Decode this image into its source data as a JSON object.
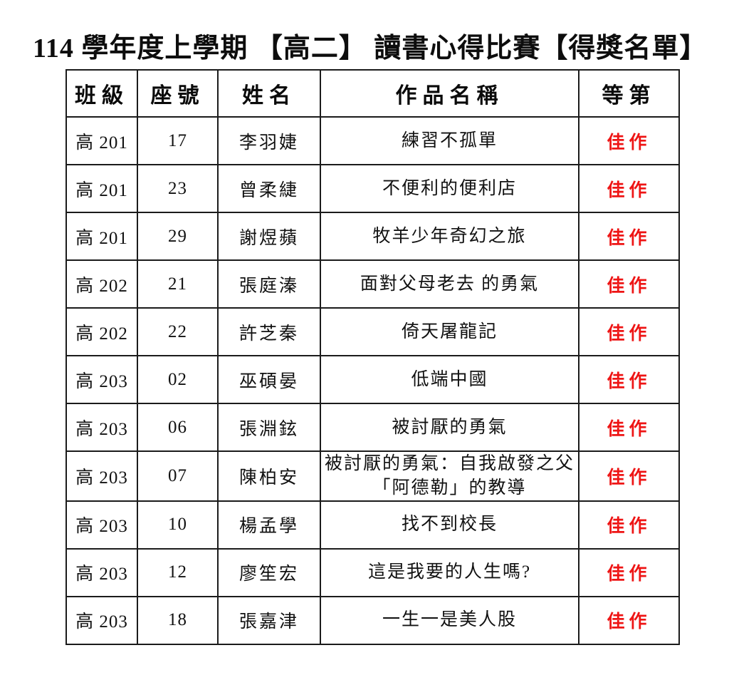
{
  "page": {
    "title": "114 學年度上學期 【高二】 讀書心得比賽【得獎名單】"
  },
  "table": {
    "columns": [
      {
        "key": "class",
        "label": "班級"
      },
      {
        "key": "seat",
        "label": "座號"
      },
      {
        "key": "name",
        "label": "姓名"
      },
      {
        "key": "work",
        "label": "作品名稱"
      },
      {
        "key": "grade",
        "label": "等第"
      }
    ],
    "rows": [
      {
        "class": "高 201",
        "seat": "17",
        "name": "李羽婕",
        "work": "練習不孤單",
        "grade": "佳作"
      },
      {
        "class": "高 201",
        "seat": "23",
        "name": "曾柔緁",
        "work": "不便利的便利店",
        "grade": "佳作"
      },
      {
        "class": "高 201",
        "seat": "29",
        "name": "謝煜蘋",
        "work": "牧羊少年奇幻之旅",
        "grade": "佳作"
      },
      {
        "class": "高 202",
        "seat": "21",
        "name": "張庭溱",
        "work": "面對父母老去 的勇氣",
        "grade": "佳作"
      },
      {
        "class": "高 202",
        "seat": "22",
        "name": "許芝秦",
        "work": "倚天屠龍記",
        "grade": "佳作"
      },
      {
        "class": "高 203",
        "seat": "02",
        "name": "巫碩晏",
        "work": "低端中國",
        "grade": "佳作"
      },
      {
        "class": "高 203",
        "seat": "06",
        "name": "張淵鉉",
        "work": "被討厭的勇氣",
        "grade": "佳作"
      },
      {
        "class": "高 203",
        "seat": "07",
        "name": "陳柏安",
        "work": "被討厭的勇氣：自我啟發之父「阿德勒」的教導",
        "grade": "佳作"
      },
      {
        "class": "高 203",
        "seat": "10",
        "name": "楊孟學",
        "work": "找不到校長",
        "grade": "佳作"
      },
      {
        "class": "高 203",
        "seat": "12",
        "name": "廖笙宏",
        "work": "這是我要的人生嗎?",
        "grade": "佳作"
      },
      {
        "class": "高 203",
        "seat": "18",
        "name": "張嘉津",
        "work": "一生一是美人股",
        "grade": "佳作"
      }
    ]
  },
  "colors": {
    "grade_red": "#ee1515",
    "border": "#1b1b1b",
    "text": "#111111"
  }
}
